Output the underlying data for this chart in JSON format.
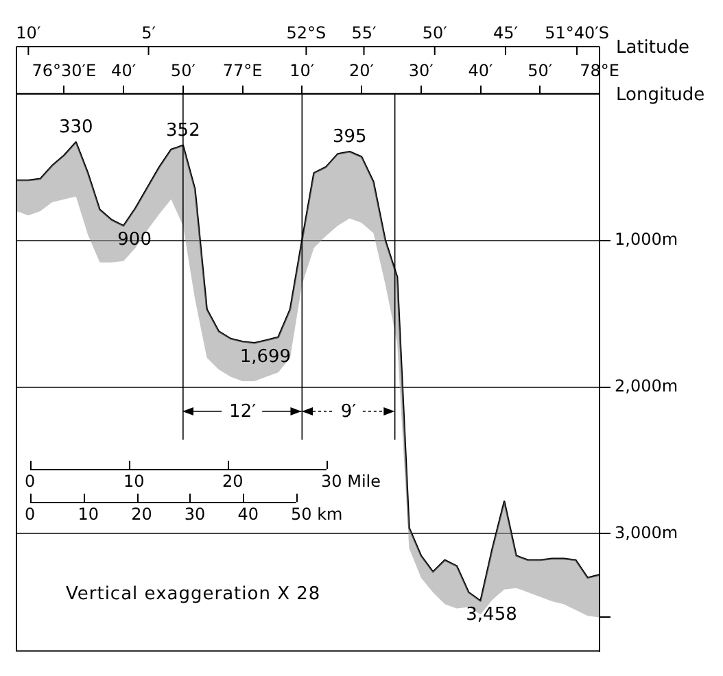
{
  "chart_data": {
    "type": "line",
    "x2label": "Latitude",
    "xlabel": "Longitude",
    "categories": [
      null,
      null,
      null,
      null,
      "76°30′E",
      null,
      null,
      null,
      null,
      "40′",
      null,
      null,
      null,
      null,
      "50′",
      null,
      null,
      null,
      null,
      "77°E",
      null,
      null,
      null,
      null,
      "10′",
      null,
      null,
      null,
      null,
      "20′",
      null,
      null,
      null,
      null,
      "30′",
      null,
      null,
      null,
      null,
      "40′",
      null,
      null,
      null,
      null,
      "50′",
      null,
      null,
      null,
      null,
      "78°E"
    ],
    "series": [
      {
        "color": "#000000",
        "values": [
          590,
          590,
          580,
          490,
          420,
          330,
          540,
          790,
          860,
          900,
          780,
          640,
          500,
          380,
          352,
          650,
          1470,
          1620,
          1670,
          1690,
          1699,
          1680,
          1660,
          1470,
          1000,
          540,
          500,
          410,
          395,
          430,
          600,
          1000,
          1250,
          2960,
          3150,
          3260,
          3180,
          3220,
          3400,
          3458,
          3100,
          2780,
          3150,
          3180,
          3180,
          3170,
          3170,
          3180,
          3300,
          3280
        ],
        "lower": [
          590,
          590,
          580,
          490,
          420,
          330,
          540,
          790,
          860,
          900,
          780,
          640,
          500,
          380,
          352,
          650,
          1470,
          1620,
          1670,
          1690,
          1699,
          1680,
          1660,
          1470,
          1000,
          540,
          500,
          410,
          395,
          430,
          600,
          1000,
          1250,
          2960,
          3150,
          3260,
          3180,
          3220,
          3400,
          3458,
          3100,
          2780,
          3150,
          3180,
          3180,
          3170,
          3170,
          3180,
          3300,
          3280
        ],
        "upper": [
          800,
          830,
          800,
          740,
          720,
          700,
          960,
          1150,
          1150,
          1140,
          1050,
          930,
          820,
          720,
          900,
          1400,
          1800,
          1880,
          1930,
          1960,
          1960,
          1930,
          1900,
          1800,
          1300,
          1050,
          970,
          900,
          850,
          880,
          950,
          1300,
          1700,
          3100,
          3300,
          3400,
          3480,
          3510,
          3500,
          3550,
          3450,
          3380,
          3370,
          3400,
          3430,
          3460,
          3480,
          3520,
          3560,
          3570
        ],
        "value_labels": [
          null,
          null,
          null,
          null,
          null,
          "330",
          null,
          null,
          null,
          "900",
          null,
          null,
          null,
          null,
          "352",
          null,
          null,
          null,
          null,
          null,
          "1,699",
          null,
          null,
          null,
          null,
          null,
          null,
          null,
          "395",
          null,
          null,
          null,
          null,
          null,
          null,
          null,
          null,
          null,
          null,
          "3,458",
          null,
          null,
          null,
          null,
          null,
          null,
          null,
          null,
          null,
          null
        ]
      }
    ],
    "ylim": [
      3800,
      0
    ],
    "yticks": [
      {
        "value": 1000,
        "label": "1,000m"
      },
      {
        "value": 2000,
        "label": "2,000m"
      },
      {
        "value": 3000,
        "label": "3,000m"
      },
      {
        "value": 3570,
        "label": null
      }
    ],
    "grid": "y",
    "annotations": [
      "12′",
      "9′",
      "Vertical exaggeration X 28",
      "0",
      "10",
      "20",
      "30 Mile",
      "0",
      "10",
      "20",
      "30",
      "40",
      "50 km",
      "10′",
      "5′",
      "52°S",
      "55′",
      "50′",
      "45′",
      "51°40′S"
    ]
  }
}
